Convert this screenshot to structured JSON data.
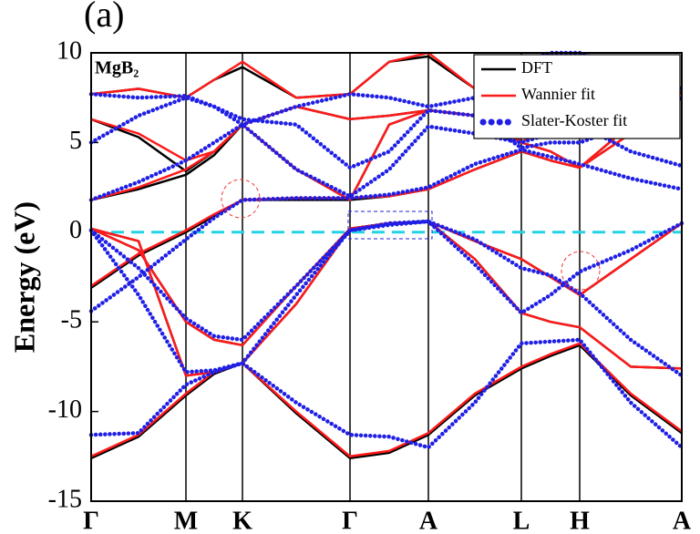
{
  "chart_data": {
    "type": "band-structure",
    "panel_label": "(a)",
    "annotation": "MgB₂",
    "ylabel": "Energy (eV)",
    "x": [
      0,
      0.52,
      1.04,
      1.35,
      1.66,
      2.25,
      2.84,
      3.27,
      3.7,
      4.21,
      4.72,
      5.04,
      5.36,
      5.92,
      6.48
    ],
    "xlim": [
      0,
      6.48
    ],
    "xticks": [
      {
        "value": 0,
        "label": "Γ"
      },
      {
        "value": 1.04,
        "label": "M"
      },
      {
        "value": 1.66,
        "label": "K"
      },
      {
        "value": 2.84,
        "label": "Γ"
      },
      {
        "value": 3.7,
        "label": "A"
      },
      {
        "value": 4.72,
        "label": "L"
      },
      {
        "value": 5.36,
        "label": "H"
      },
      {
        "value": 6.48,
        "label": "A"
      }
    ],
    "ylim": [
      -15,
      10
    ],
    "yticks": [
      -15,
      -10,
      -5,
      0,
      5,
      10
    ],
    "reference_line": {
      "value": 0,
      "color": "#22d3e6"
    },
    "legend": "upper right",
    "series": [
      {
        "name": "DFT",
        "color": "#000000",
        "style": "solid",
        "bands": [
          [
            -12.6,
            -11.4,
            -9.1,
            -7.9,
            -7.3,
            -10.1,
            -12.6,
            -12.3,
            -11.3,
            -9.1,
            -7.6,
            -6.9,
            -6.3,
            -9.1,
            -11.2
          ],
          [
            -3.1,
            -1.3,
            0.0,
            0.9,
            1.8,
            1.8,
            1.8,
            2.0,
            2.4,
            3.5,
            4.5,
            4.0,
            3.6,
            5.5,
            7.8
          ],
          [
            0.2,
            -1.0,
            -5.0,
            -6.0,
            -6.3,
            -3.0,
            0.2,
            0.5,
            0.6,
            -1.5,
            -4.5,
            -5.0,
            -5.3,
            -7.5,
            -7.6
          ],
          [
            0.2,
            -0.5,
            -8.0,
            -7.8,
            -7.3,
            -4.0,
            0.2,
            0.5,
            0.6,
            -0.5,
            -1.5,
            -2.5,
            -3.5,
            -1.5,
            0.5
          ],
          [
            1.8,
            2.4,
            3.2,
            4.3,
            6.0,
            3.5,
            1.8,
            6.0,
            6.8,
            6.5,
            5.0,
            4.5,
            3.6,
            6.0,
            7.5
          ],
          [
            6.3,
            5.3,
            3.4,
            4.5,
            6.0,
            7.0,
            6.3,
            6.5,
            6.8,
            6.5,
            5.0,
            6.0,
            9.0,
            8.0,
            7.8
          ],
          [
            7.7,
            8.0,
            7.5,
            8.5,
            9.2,
            7.5,
            7.7,
            9.5,
            9.8,
            8.0,
            5.0,
            6.0,
            9.0,
            8.5,
            8.0
          ]
        ]
      },
      {
        "name": "Wannier fit",
        "color": "#ff1a1a",
        "style": "solid",
        "bands": [
          [
            -12.5,
            -11.3,
            -9.0,
            -7.8,
            -7.3,
            -10.0,
            -12.5,
            -12.2,
            -11.2,
            -9.0,
            -7.5,
            -6.8,
            -6.2,
            -9.0,
            -11.1
          ],
          [
            -3.0,
            -1.2,
            0.1,
            1.0,
            1.8,
            1.9,
            1.9,
            2.0,
            2.4,
            3.5,
            4.5,
            4.0,
            3.6,
            5.5,
            7.8
          ],
          [
            0.2,
            -1.0,
            -5.0,
            -6.0,
            -6.3,
            -3.0,
            0.2,
            0.5,
            0.6,
            -1.5,
            -4.5,
            -5.0,
            -5.3,
            -7.5,
            -7.6
          ],
          [
            0.2,
            -0.5,
            -8.0,
            -7.8,
            -7.3,
            -4.0,
            0.2,
            0.5,
            0.6,
            -0.5,
            -1.5,
            -2.5,
            -3.5,
            -1.5,
            0.5
          ],
          [
            1.8,
            2.5,
            3.5,
            4.5,
            6.0,
            3.5,
            1.8,
            6.0,
            6.8,
            6.5,
            5.0,
            4.5,
            3.6,
            6.0,
            7.5
          ],
          [
            6.3,
            5.5,
            4.0,
            4.5,
            6.0,
            7.0,
            6.3,
            6.5,
            6.8,
            6.5,
            5.0,
            6.0,
            9.0,
            8.0,
            7.8
          ],
          [
            7.7,
            8.0,
            7.5,
            8.5,
            9.5,
            7.5,
            7.7,
            9.5,
            10,
            8.0,
            5.0,
            6.0,
            9.0,
            8.5,
            8.0
          ]
        ]
      },
      {
        "name": "Slater-Koster fit",
        "color": "#1f1fe6",
        "style": "dots",
        "bands": [
          [
            -11.3,
            -11.2,
            -8.5,
            -7.8,
            -7.3,
            -9.5,
            -11.3,
            -11.4,
            -12.0,
            -9.5,
            -6.2,
            -6.1,
            -6.0,
            -9.5,
            -12.0
          ],
          [
            -4.4,
            -2.5,
            -0.4,
            0.8,
            1.8,
            1.9,
            1.9,
            2.1,
            2.5,
            3.8,
            4.6,
            4.2,
            3.8,
            3.0,
            2.4
          ],
          [
            0.1,
            -2.0,
            -4.8,
            -5.8,
            -6.0,
            -3.0,
            0.1,
            0.5,
            0.6,
            -1.8,
            -4.5,
            -3.5,
            -2.2,
            -1.0,
            0.5
          ],
          [
            0.1,
            -3.5,
            -7.8,
            -7.7,
            -7.3,
            -3.5,
            0.1,
            0.4,
            0.6,
            -0.4,
            -2.0,
            -2.4,
            -3.4,
            -6.0,
            -8.0
          ],
          [
            1.8,
            2.8,
            4.0,
            5.0,
            6.0,
            3.5,
            2.0,
            3.5,
            5.9,
            5.5,
            5.0,
            5.5,
            6.0,
            4.5,
            3.7
          ],
          [
            5.0,
            6.5,
            7.5,
            7.0,
            6.3,
            6.0,
            3.6,
            4.5,
            6.8,
            6.5,
            4.7,
            5.0,
            5.0,
            6.0,
            7.5
          ],
          [
            7.7,
            7.5,
            7.6,
            7.0,
            6.0,
            7.0,
            7.7,
            7.5,
            7.0,
            7.5,
            9.5,
            10,
            10,
            9,
            8
          ]
        ]
      }
    ]
  }
}
